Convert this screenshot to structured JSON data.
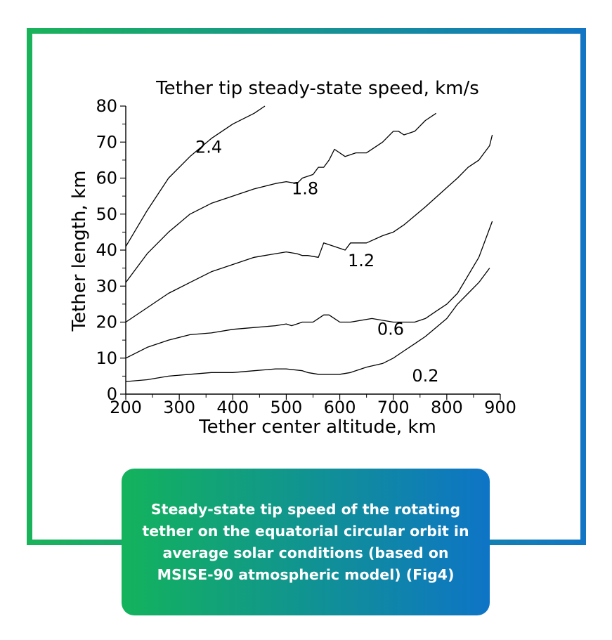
{
  "colors": {
    "frame_start": "#1ab35a",
    "frame_end": "#1276c4",
    "ink": "#000000"
  },
  "chart_data": {
    "type": "line",
    "title": "Tether tip steady-state speed, km/s",
    "xlabel": "Tether center altitude, km",
    "ylabel": "Tether length, km",
    "xlim": [
      200,
      900
    ],
    "ylim": [
      0,
      80
    ],
    "xticks": [
      "200",
      "300",
      "400",
      "500",
      "600",
      "700",
      "800",
      "900"
    ],
    "yticks": [
      "0",
      "10",
      "20",
      "30",
      "40",
      "50",
      "60",
      "70",
      "80"
    ],
    "grid": false,
    "series": [
      {
        "name": "2.4",
        "points": [
          [
            200,
            41
          ],
          [
            240,
            51
          ],
          [
            280,
            60
          ],
          [
            320,
            66
          ],
          [
            360,
            71
          ],
          [
            400,
            75
          ],
          [
            440,
            78
          ],
          [
            460,
            80
          ]
        ]
      },
      {
        "name": "1.8",
        "points": [
          [
            200,
            31
          ],
          [
            240,
            39
          ],
          [
            280,
            45
          ],
          [
            320,
            50
          ],
          [
            360,
            53
          ],
          [
            400,
            55
          ],
          [
            440,
            57
          ],
          [
            480,
            58.5
          ],
          [
            500,
            59
          ],
          [
            520,
            58.5
          ],
          [
            530,
            60
          ],
          [
            550,
            61
          ],
          [
            560,
            63
          ],
          [
            570,
            63
          ],
          [
            580,
            65
          ],
          [
            590,
            68
          ],
          [
            610,
            66
          ],
          [
            630,
            67
          ],
          [
            650,
            67
          ],
          [
            680,
            70
          ],
          [
            700,
            73
          ],
          [
            710,
            73
          ],
          [
            720,
            72
          ],
          [
            740,
            73
          ],
          [
            760,
            76
          ],
          [
            780,
            78
          ]
        ]
      },
      {
        "name": "1.2",
        "points": [
          [
            200,
            20
          ],
          [
            240,
            24
          ],
          [
            280,
            28
          ],
          [
            320,
            31
          ],
          [
            360,
            34
          ],
          [
            400,
            36
          ],
          [
            440,
            38
          ],
          [
            480,
            39
          ],
          [
            500,
            39.5
          ],
          [
            520,
            39
          ],
          [
            530,
            38.5
          ],
          [
            540,
            38.5
          ],
          [
            560,
            38
          ],
          [
            570,
            42
          ],
          [
            590,
            41
          ],
          [
            610,
            40
          ],
          [
            620,
            42
          ],
          [
            650,
            42
          ],
          [
            680,
            44
          ],
          [
            700,
            45
          ],
          [
            720,
            47
          ],
          [
            760,
            52
          ],
          [
            790,
            56
          ],
          [
            820,
            60
          ],
          [
            840,
            63
          ],
          [
            860,
            65
          ],
          [
            880,
            69
          ],
          [
            885,
            72
          ]
        ]
      },
      {
        "name": "0.6",
        "points": [
          [
            200,
            10
          ],
          [
            240,
            13
          ],
          [
            280,
            15
          ],
          [
            320,
            16.5
          ],
          [
            360,
            17
          ],
          [
            400,
            18
          ],
          [
            440,
            18.5
          ],
          [
            480,
            19
          ],
          [
            500,
            19.5
          ],
          [
            510,
            19
          ],
          [
            520,
            19.5
          ],
          [
            530,
            20
          ],
          [
            550,
            20
          ],
          [
            560,
            21
          ],
          [
            570,
            22
          ],
          [
            580,
            22
          ],
          [
            590,
            21
          ],
          [
            600,
            20
          ],
          [
            620,
            20
          ],
          [
            660,
            21
          ],
          [
            700,
            20
          ],
          [
            740,
            20
          ],
          [
            760,
            21
          ],
          [
            780,
            23
          ],
          [
            800,
            25
          ],
          [
            820,
            28
          ],
          [
            840,
            33
          ],
          [
            860,
            38
          ],
          [
            875,
            44
          ],
          [
            885,
            48
          ]
        ]
      },
      {
        "name": "0.2",
        "points": [
          [
            200,
            3.5
          ],
          [
            240,
            4
          ],
          [
            280,
            5
          ],
          [
            320,
            5.5
          ],
          [
            360,
            6
          ],
          [
            400,
            6
          ],
          [
            440,
            6.5
          ],
          [
            480,
            7
          ],
          [
            500,
            7
          ],
          [
            530,
            6.5
          ],
          [
            540,
            6
          ],
          [
            560,
            5.5
          ],
          [
            580,
            5.5
          ],
          [
            600,
            5.5
          ],
          [
            620,
            6
          ],
          [
            650,
            7.5
          ],
          [
            680,
            8.5
          ],
          [
            700,
            10
          ],
          [
            720,
            12
          ],
          [
            740,
            14
          ],
          [
            760,
            16
          ],
          [
            780,
            18.5
          ],
          [
            800,
            21
          ],
          [
            820,
            25
          ],
          [
            840,
            28
          ],
          [
            860,
            31
          ],
          [
            880,
            35
          ]
        ]
      }
    ]
  },
  "caption": {
    "text": "Steady-state tip speed of the rotating tether on the equatorial circular orbit in average solar conditions (based on MSISE-90 atmospheric model) (Fig4)"
  }
}
